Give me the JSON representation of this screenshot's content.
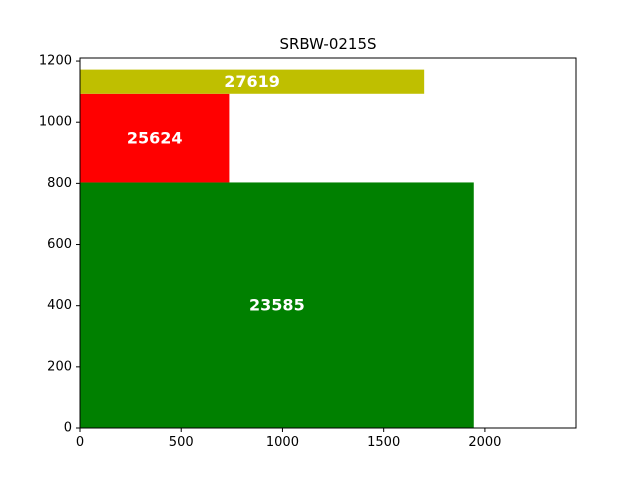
{
  "chart_data": {
    "type": "treemap-rectangles",
    "title": "SRBW-0215S",
    "xlim": [
      0,
      2450
    ],
    "ylim": [
      0,
      1210
    ],
    "x_ticks": [
      0,
      500,
      1000,
      1500,
      2000
    ],
    "y_ticks": [
      0,
      200,
      400,
      600,
      800,
      1000,
      1200
    ],
    "rectangles": [
      {
        "label": "23585",
        "x0": 0,
        "x1": 1945,
        "y0": 0,
        "y1": 803,
        "color": "#008000"
      },
      {
        "label": "25624",
        "x0": 0,
        "x1": 738,
        "y0": 803,
        "y1": 1093,
        "color": "#ff0000"
      },
      {
        "label": "27619",
        "x0": 0,
        "x1": 1700,
        "y0": 1093,
        "y1": 1172,
        "color": "#bfbf00"
      }
    ],
    "grid": false,
    "xlabel": "",
    "ylabel": ""
  }
}
